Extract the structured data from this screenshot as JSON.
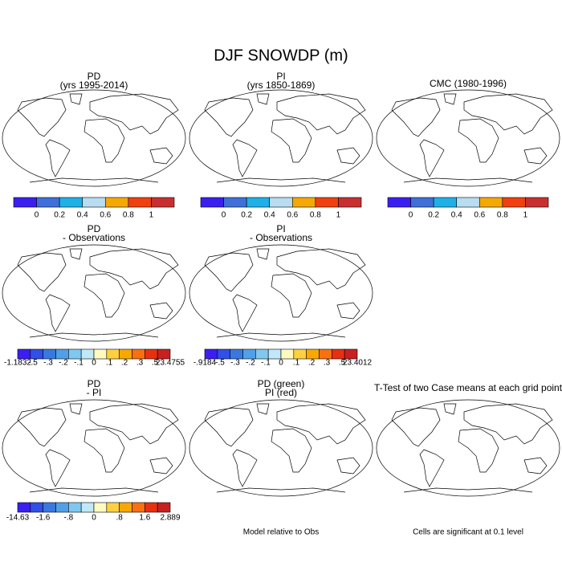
{
  "title": "DJF SNOWDP (m)",
  "panels": [
    {
      "title": [
        "PD",
        "(yrs 1995-2014)"
      ],
      "colorbar": {
        "colors": [
          "#3a1ff0",
          "#3f6fd8",
          "#1fb0e8",
          "#b8dcf0",
          "#f5a800",
          "#f04010",
          "#c83030"
        ],
        "labels": [
          "0",
          "0.2",
          "0.4",
          "0.6",
          "0.8",
          "1"
        ]
      }
    },
    {
      "title": [
        "PI",
        "(yrs 1850-1869)"
      ],
      "colorbar": {
        "colors": [
          "#3a1ff0",
          "#3f6fd8",
          "#1fb0e8",
          "#b8dcf0",
          "#f5a800",
          "#f04010",
          "#c83030"
        ],
        "labels": [
          "0",
          "0.2",
          "0.4",
          "0.6",
          "0.8",
          "1"
        ]
      }
    },
    {
      "title": [
        "CMC (1980-1996)"
      ],
      "colorbar": {
        "colors": [
          "#3a1ff0",
          "#3f6fd8",
          "#1fb0e8",
          "#b8dcf0",
          "#f5a800",
          "#f04010",
          "#c83030"
        ],
        "labels": [
          "0",
          "0.2",
          "0.4",
          "0.6",
          "0.8",
          "1"
        ]
      }
    },
    {
      "title": [
        "PD",
        "- Observations"
      ],
      "colorbar": {
        "colors": [
          "#3a1ff0",
          "#3050e8",
          "#3a78e0",
          "#50a0e8",
          "#80c8f0",
          "#c0e8f8",
          "#fffac0",
          "#ffd040",
          "#f8a800",
          "#f87010",
          "#e83010",
          "#c82020"
        ],
        "labels": [
          "-1.1832",
          "-.5",
          "-.3",
          "-.2",
          "-.1",
          "0",
          ".1",
          ".2",
          ".3",
          ".5",
          "23.4755"
        ]
      }
    },
    {
      "title": [
        "PI",
        "- Observations"
      ],
      "colorbar": {
        "colors": [
          "#3a1ff0",
          "#3050e8",
          "#3a78e0",
          "#50a0e8",
          "#80c8f0",
          "#c0e8f8",
          "#fffac0",
          "#ffd040",
          "#f8a800",
          "#f87010",
          "#e83010",
          "#c82020"
        ],
        "labels": [
          "-.9184",
          "-.5",
          "-.3",
          "-.2",
          "-.1",
          "0",
          ".1",
          ".2",
          ".3",
          ".5",
          "23.4012"
        ]
      }
    },
    {
      "title": [
        "PD",
        "- PI"
      ],
      "colorbar": {
        "colors": [
          "#3a1ff0",
          "#3050e8",
          "#3a78e0",
          "#50a0e8",
          "#80c8f0",
          "#c0e8f8",
          "#fffac0",
          "#ffd040",
          "#f8a800",
          "#f87010",
          "#e83010",
          "#c82020"
        ],
        "labels": [
          "-14.63",
          "-1.6",
          "-.8",
          "0",
          ".8",
          "1.6",
          "2.889"
        ]
      }
    },
    {
      "title": [
        "PD (green)",
        "PI (red)"
      ],
      "note": "Model relative to Obs"
    },
    {
      "title": [
        "T-Test of two Case means at each grid point"
      ],
      "note": "Cells are significant at 0.1 level"
    }
  ]
}
